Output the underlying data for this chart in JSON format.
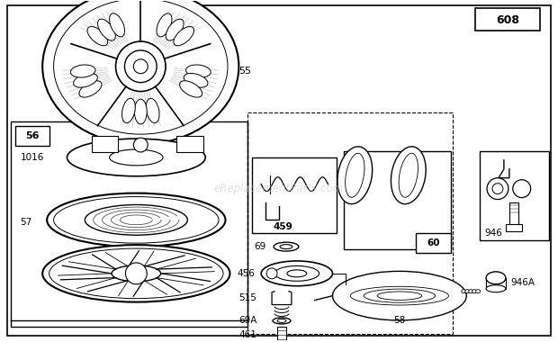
{
  "bg_color": "#ffffff",
  "watermark": "eReplacementParts.com",
  "figsize": [
    6.2,
    3.8
  ],
  "dpi": 100
}
